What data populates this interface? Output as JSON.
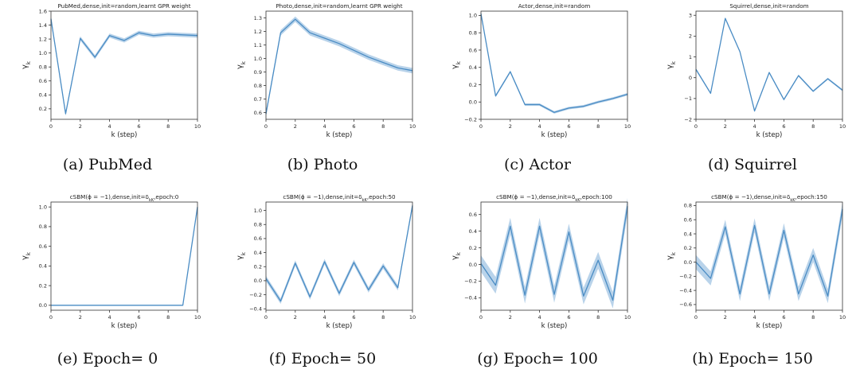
{
  "chart_data": [
    {
      "type": "line",
      "title": "PubMed,dense,init=random,learnt GPR weight",
      "caption": "(a) PubMed",
      "xlabel": "k (step)",
      "ylabel": "γ_k",
      "xlim": [
        0,
        10
      ],
      "ylim": [
        0.05,
        1.6
      ],
      "xticks": [
        0,
        2,
        4,
        6,
        8,
        10
      ],
      "yticks": [
        0.2,
        0.4,
        0.6,
        0.8,
        1.0,
        1.2,
        1.4,
        1.6
      ],
      "ytick_labels": [
        "0.2",
        "0.4",
        "0.6",
        "0.8",
        "1.0",
        "1.2",
        "1.4",
        "1.6"
      ],
      "grid": false,
      "line_color": "#4a8cc4",
      "band_color": "#b9d3ea",
      "series": [
        {
          "x": [
            0,
            1,
            2,
            3,
            4,
            5,
            6,
            7,
            8,
            9,
            10
          ],
          "y": [
            1.49,
            0.13,
            1.21,
            0.94,
            1.25,
            1.18,
            1.29,
            1.25,
            1.27,
            1.26,
            1.25
          ],
          "band": 0.03
        }
      ]
    },
    {
      "type": "line",
      "title": "Photo,dense,init=random,learnt GPR weight",
      "caption": "(b) Photo",
      "xlabel": "k (step)",
      "ylabel": "γ_k",
      "xlim": [
        0,
        10
      ],
      "ylim": [
        0.55,
        1.35
      ],
      "xticks": [
        0,
        2,
        4,
        6,
        8,
        10
      ],
      "yticks": [
        0.6,
        0.7,
        0.8,
        0.9,
        1.0,
        1.1,
        1.2,
        1.3
      ],
      "ytick_labels": [
        "0.6",
        "0.7",
        "0.8",
        "0.9",
        "1.0",
        "1.1",
        "1.2",
        "1.3"
      ],
      "grid": false,
      "line_color": "#4a8cc4",
      "band_color": "#b9d3ea",
      "series": [
        {
          "x": [
            0,
            1,
            2,
            3,
            4,
            5,
            6,
            7,
            8,
            9,
            10
          ],
          "y": [
            0.59,
            1.19,
            1.29,
            1.19,
            1.15,
            1.11,
            1.06,
            1.01,
            0.97,
            0.93,
            0.91
          ],
          "band": 0.02
        }
      ]
    },
    {
      "type": "line",
      "title": "Actor,dense,init=random",
      "caption": "(c) Actor",
      "xlabel": "k (step)",
      "ylabel": "γ_k",
      "xlim": [
        0,
        10
      ],
      "ylim": [
        -0.2,
        1.05
      ],
      "xticks": [
        0,
        2,
        4,
        6,
        8,
        10
      ],
      "yticks": [
        -0.2,
        0.0,
        0.2,
        0.4,
        0.6,
        0.8,
        1.0
      ],
      "ytick_labels": [
        "−0.2",
        "0.0",
        "0.2",
        "0.4",
        "0.6",
        "0.8",
        "1.0"
      ],
      "grid": false,
      "line_color": "#4a8cc4",
      "band_color": "#b9d3ea",
      "series": [
        {
          "x": [
            0,
            1,
            2,
            3,
            4,
            5,
            6,
            7,
            8,
            9,
            10
          ],
          "y": [
            1.02,
            0.07,
            0.35,
            -0.03,
            -0.03,
            -0.12,
            -0.07,
            -0.05,
            0.0,
            0.04,
            0.09
          ],
          "band": 0.015
        }
      ]
    },
    {
      "type": "line",
      "title": "Squirrel,dense,init=random",
      "caption": "(d) Squirrel",
      "xlabel": "k (step)",
      "ylabel": "γ_k",
      "xlim": [
        0,
        10
      ],
      "ylim": [
        -2,
        3.2
      ],
      "xticks": [
        0,
        2,
        4,
        6,
        8,
        10
      ],
      "yticks": [
        -2,
        -1,
        0,
        1,
        2,
        3
      ],
      "ytick_labels": [
        "−2",
        "−1",
        "0",
        "1",
        "2",
        "3"
      ],
      "grid": false,
      "line_color": "#4a8cc4",
      "band_color": "#b9d3ea",
      "series": [
        {
          "x": [
            0,
            1,
            2,
            3,
            4,
            5,
            6,
            7,
            8,
            9,
            10
          ],
          "y": [
            0.4,
            -0.75,
            2.85,
            1.25,
            -1.6,
            0.25,
            -1.05,
            0.1,
            -0.65,
            -0.05,
            -0.6
          ],
          "band": 0.05
        }
      ]
    },
    {
      "type": "line",
      "title": "cSBM(ϕ = −1),dense,init=δ_kK,epoch:0",
      "caption": "(e) Epoch= 0",
      "xlabel": "k (step)",
      "ylabel": "γ_k",
      "xlim": [
        0,
        10
      ],
      "ylim": [
        -0.05,
        1.05
      ],
      "xticks": [
        0,
        2,
        4,
        6,
        8,
        10
      ],
      "yticks": [
        0.0,
        0.2,
        0.4,
        0.6,
        0.8,
        1.0
      ],
      "ytick_labels": [
        "0.0",
        "0.2",
        "0.4",
        "0.6",
        "0.8",
        "1.0"
      ],
      "grid": false,
      "line_color": "#4a8cc4",
      "band_color": "#b9d3ea",
      "series": [
        {
          "x": [
            0,
            1,
            2,
            3,
            4,
            5,
            6,
            7,
            8,
            9,
            10
          ],
          "y": [
            0,
            0,
            0,
            0,
            0,
            0,
            0,
            0,
            0,
            0,
            1.0
          ],
          "band": 0.0
        }
      ]
    },
    {
      "type": "line",
      "title": "cSBM(ϕ = −1),dense,init=δ_kK,epoch:50",
      "caption": "(f) Epoch= 50",
      "xlabel": "k (step)",
      "ylabel": "γ_k",
      "xlim": [
        0,
        10
      ],
      "ylim": [
        -0.42,
        1.12
      ],
      "xticks": [
        0,
        2,
        4,
        6,
        8,
        10
      ],
      "yticks": [
        -0.4,
        -0.2,
        0.0,
        0.2,
        0.4,
        0.6,
        0.8,
        1.0
      ],
      "ytick_labels": [
        "−0.4",
        "−0.2",
        "0.0",
        "0.2",
        "0.4",
        "0.6",
        "0.8",
        "1.0"
      ],
      "grid": false,
      "line_color": "#4a8cc4",
      "band_color": "#b9d3ea",
      "series": [
        {
          "x": [
            0,
            1,
            2,
            3,
            4,
            5,
            6,
            7,
            8,
            9,
            10
          ],
          "y": [
            0.03,
            -0.29,
            0.25,
            -0.23,
            0.27,
            -0.18,
            0.26,
            -0.13,
            0.21,
            -0.1,
            1.07
          ],
          "band": 0.04
        }
      ]
    },
    {
      "type": "line",
      "title": "cSBM(ϕ = −1),dense,init=δ_kK,epoch:100",
      "caption": "(g) Epoch= 100",
      "xlabel": "k (step)",
      "ylabel": "γ_k",
      "xlim": [
        0,
        10
      ],
      "ylim": [
        -0.55,
        0.75
      ],
      "xticks": [
        0,
        2,
        4,
        6,
        8,
        10
      ],
      "yticks": [
        -0.4,
        -0.2,
        0.0,
        0.2,
        0.4,
        0.6
      ],
      "ytick_labels": [
        "−0.4",
        "−0.2",
        "0.0",
        "0.2",
        "0.4",
        "0.6"
      ],
      "grid": false,
      "line_color": "#4a8cc4",
      "band_color": "#b9d3ea",
      "series": [
        {
          "x": [
            0,
            1,
            2,
            3,
            4,
            5,
            6,
            7,
            8,
            9,
            10
          ],
          "y": [
            0.01,
            -0.25,
            0.46,
            -0.37,
            0.46,
            -0.36,
            0.39,
            -0.38,
            0.05,
            -0.43,
            0.7
          ],
          "band": 0.1
        }
      ]
    },
    {
      "type": "line",
      "title": "cSBM(ϕ = −1),dense,init=δ_kK,epoch:150",
      "caption": "(h) Epoch= 150",
      "xlabel": "k (step)",
      "ylabel": "γ_k",
      "xlim": [
        0,
        10
      ],
      "ylim": [
        -0.68,
        0.85
      ],
      "xticks": [
        0,
        2,
        4,
        6,
        8,
        10
      ],
      "yticks": [
        -0.6,
        -0.4,
        -0.2,
        0.0,
        0.2,
        0.4,
        0.6,
        0.8
      ],
      "ytick_labels": [
        "−0.6",
        "−0.4",
        "−0.2",
        "0.0",
        "0.2",
        "0.4",
        "0.6",
        "0.8"
      ],
      "grid": false,
      "line_color": "#4a8cc4",
      "band_color": "#b9d3ea",
      "series": [
        {
          "x": [
            0,
            1,
            2,
            3,
            4,
            5,
            6,
            7,
            8,
            9,
            10
          ],
          "y": [
            0.0,
            -0.23,
            0.5,
            -0.45,
            0.52,
            -0.45,
            0.45,
            -0.45,
            0.1,
            -0.48,
            0.75
          ],
          "band": 0.1
        }
      ]
    }
  ]
}
